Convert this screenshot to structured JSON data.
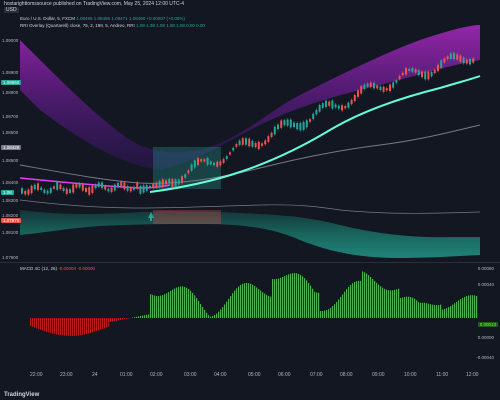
{
  "header": {
    "publisher": "hostarighttomssource published on TradingView.com, May 25, 2024 12:00 UTC-4",
    "currency": "USD"
  },
  "legend": {
    "symbol": "Euro / U.S. Dollar, 5, FXCM",
    "symbol_values": "1.08495 1.08496 1.08471 1.08490 +0.00007 (+0.00%)",
    "indicator": "RRI Overlay (Quartarell) close, 75, 2, 198, 5, Andreo, RRI",
    "indicator_values": "1.09 1.08 1.08 1.08 1.08 0.00 0.00"
  },
  "macd_legend": {
    "label": "MACD 4C (12, 26)",
    "value": "-0.00004 -0.00000"
  },
  "price_scale": {
    "labels": [
      "1.09000",
      "1.08900",
      "1.08800",
      "1.08700",
      "1.08600",
      "1.08500",
      "1.08400",
      "1.08300",
      "1.08200",
      "1.08100",
      "1.07900"
    ],
    "pills": [
      {
        "text": "1.08650",
        "color": "#26a69a"
      },
      {
        "text": "1.08428",
        "color": "#787b86"
      },
      {
        "text": "1.08",
        "color": "#26a69a"
      },
      {
        "text": "1.07975",
        "color": "#ef5350"
      }
    ]
  },
  "macd_scale": {
    "labels": [
      "0.00080",
      "0.00040",
      "0.00000",
      "-0.00040"
    ],
    "current": "0.00013"
  },
  "time_axis": {
    "labels": [
      "22:00",
      "23:00",
      "24",
      "01:00",
      "02:00",
      "03:00",
      "04:00",
      "05:00",
      "06:00",
      "07:00",
      "08:00",
      "09:00",
      "10:00",
      "11:00",
      "12:00"
    ]
  },
  "branding": {
    "logo_text": "TradingView"
  },
  "colors": {
    "bg": "#131722",
    "upper_band": "#7b1fa2",
    "lower_band": "#26a69a",
    "up_candle": "#26a69a",
    "down_candle": "#ef5350",
    "ma_line": "#64ffda",
    "slow_ma": "#b2b5be",
    "pink_line": "#e040fb",
    "hist_pos": "#4caf50",
    "hist_neg": "#b71c1c"
  }
}
